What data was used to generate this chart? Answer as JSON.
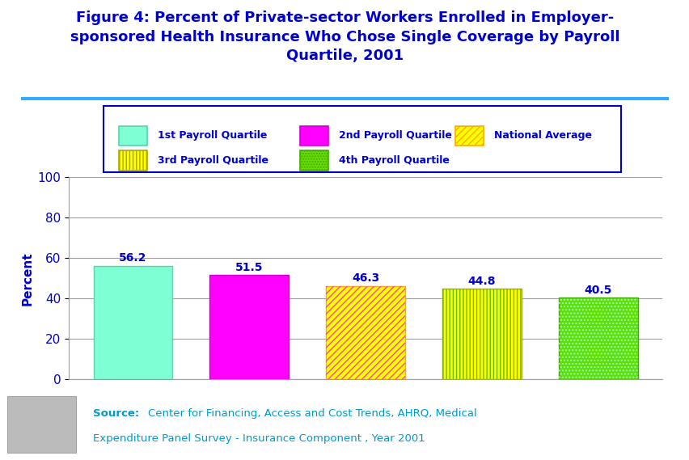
{
  "title_line1": "Figure 4: Percent of Private-sector Workers Enrolled in Employer-",
  "title_line2": "sponsored Health Insurance Who Chose Single Coverage by Payroll",
  "title_line3": "Quartile, 2001",
  "title_color": "#0000CC",
  "title_fontsize": 13,
  "background_color": "#FFFFFF",
  "ylabel": "Percent",
  "ylabel_color": "#0000CC",
  "ylabel_fontsize": 11,
  "ytick_color": "#0000CC",
  "ytick_fontsize": 11,
  "ylim": [
    0,
    100
  ],
  "yticks": [
    0,
    20,
    40,
    60,
    80,
    100
  ],
  "grid_color": "#9999BB",
  "values": [
    56.2,
    51.5,
    46.3,
    44.8,
    40.5
  ],
  "value_labels": [
    "56.2",
    "51.5",
    "46.3",
    "44.8",
    "40.5"
  ],
  "value_label_color": "#0000CC",
  "value_label_fontsize": 10,
  "legend_labels": [
    "1st Payroll Quartile",
    "2nd Payroll Quartile",
    "National Average",
    "3rd Payroll Quartile",
    "4th Payroll Quartile"
  ],
  "source_color": "#0099CC",
  "header_line_color": "#33AAFF",
  "footer_bg": "#DDDDDD",
  "plot_area_bg": "#FFFFFF"
}
